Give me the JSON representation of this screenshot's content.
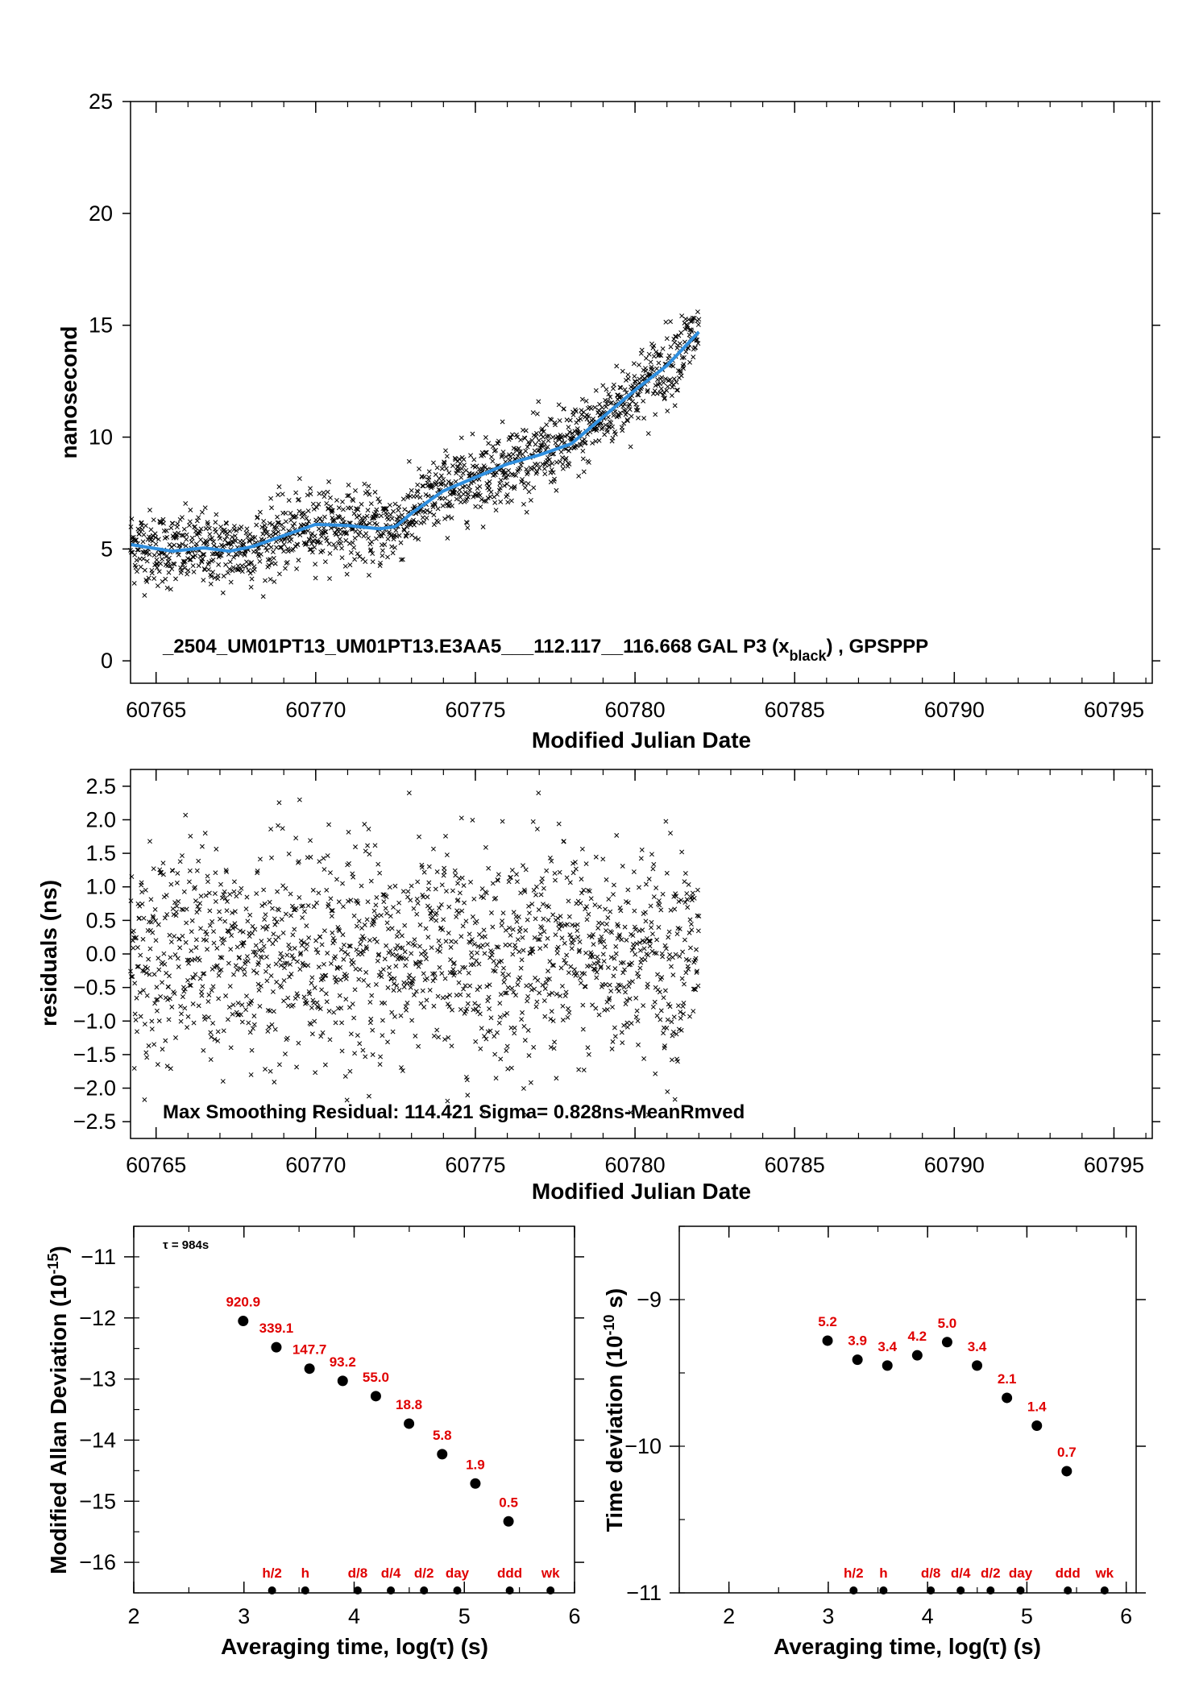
{
  "colors": {
    "scatter": "#000000",
    "smooth": "#2f8fdf",
    "labels": "#e00000"
  },
  "chart_data": [
    {
      "type": "scatter",
      "xlabel": "Modified Julian Date",
      "ylabel": "nanosecond",
      "xlim": [
        60764.2,
        60796.2
      ],
      "ylim": [
        -1,
        25
      ],
      "xticks": [
        60765,
        60770,
        60775,
        60780,
        60785,
        60790,
        60795
      ],
      "yticks": [
        0,
        5,
        10,
        15,
        20,
        25
      ],
      "annotation": {
        "prefix": "_2504_UM01PT13_UM01PT13.E3AA5___112.117__116.668    GAL P3 (x",
        "sub": "black",
        "suffix": ") ,  GPSPPP"
      },
      "scatter_marker": "x",
      "data_span": [
        60764.2,
        60782.0
      ],
      "series": [
        {
          "name": "smoothed",
          "x": [
            60764.2,
            60765.5,
            60766.5,
            60767.3,
            60768.0,
            60769.0,
            60770.0,
            60771.0,
            60772.0,
            60772.5,
            60773.0,
            60774.0,
            60775.0,
            60776.0,
            60777.0,
            60778.0,
            60779.0,
            60780.0,
            60781.0,
            60782.0
          ],
          "y": [
            5.2,
            4.9,
            5.05,
            4.9,
            5.1,
            5.6,
            6.1,
            6.05,
            5.9,
            6.0,
            6.6,
            7.6,
            8.2,
            8.8,
            9.2,
            9.7,
            10.9,
            12.1,
            13.2,
            14.7
          ]
        }
      ]
    },
    {
      "type": "scatter",
      "xlabel": "Modified Julian Date",
      "ylabel": "residuals (ns)",
      "xlim": [
        60764.2,
        60796.2
      ],
      "ylim": [
        -2.75,
        2.75
      ],
      "xticks": [
        60765,
        60770,
        60775,
        60780,
        60785,
        60790,
        60795
      ],
      "yticks": [
        -2.5,
        -2.0,
        -1.5,
        -1.0,
        -0.5,
        0.0,
        0.5,
        1.0,
        1.5,
        2.0,
        2.5
      ],
      "ytick_labels": [
        "−2.5",
        "−2.0",
        "−1.5",
        "−1.0",
        "−0.5",
        "0.0",
        "0.5",
        "1.0",
        "1.5",
        "2.0",
        "2.5"
      ],
      "annotation": "Max Smoothing Residual: 114.421  Sigma= 0.828ns-MeanRmved",
      "sigma": 0.828,
      "scatter_marker": "x",
      "data_span": [
        60764.2,
        60782.0
      ]
    },
    {
      "type": "scatter",
      "xlabel": "Averaging time, log(τ) (s)",
      "ylabel": "Modified Allan Deviation (10",
      "ylabel_sup": "-15",
      "ylabel_end": ")",
      "xlim": [
        2,
        6
      ],
      "ylim": [
        -16.5,
        -10.5
      ],
      "xticks": [
        2,
        3,
        4,
        5,
        6
      ],
      "yticks": [
        -16,
        -15,
        -14,
        -13,
        -12,
        -11
      ],
      "ytick_labels": [
        "−16",
        "−15",
        "−14",
        "−13",
        "−12",
        "−11"
      ],
      "tau_note": "τ = 984s",
      "x": [
        2.993,
        3.294,
        3.595,
        3.896,
        4.197,
        4.498,
        4.799,
        5.1,
        5.401
      ],
      "y": [
        -12.05,
        -12.48,
        -12.83,
        -13.03,
        -13.28,
        -13.73,
        -14.23,
        -14.71,
        -15.33
      ],
      "labels": [
        "920.9",
        "339.1",
        "147.7",
        "93.2",
        "55.0",
        "18.8",
        "5.8",
        "1.9",
        "0.5"
      ],
      "markers": {
        "x": [
          3.255,
          3.556,
          4.032,
          4.333,
          4.634,
          4.936,
          5.412,
          5.782
        ],
        "labels": [
          "h/2",
          "h",
          "d/8",
          "d/4",
          "d/2",
          "day",
          "ddd",
          "wk"
        ]
      }
    },
    {
      "type": "scatter",
      "xlabel": "Averaging time, log(τ) (s)",
      "ylabel": "Time deviation (10",
      "ylabel_sup": "-10",
      "ylabel_end": " s)",
      "xlim": [
        1.5,
        6.1
      ],
      "ylim": [
        -11.0,
        -8.5
      ],
      "xticks": [
        2,
        3,
        4,
        5,
        6
      ],
      "yticks": [
        -11,
        -10,
        -9
      ],
      "ytick_labels": [
        "−11",
        "−10",
        "−9"
      ],
      "x": [
        2.993,
        3.294,
        3.595,
        3.896,
        4.197,
        4.498,
        4.799,
        5.1,
        5.401
      ],
      "y": [
        -9.28,
        -9.41,
        -9.45,
        -9.38,
        -9.29,
        -9.45,
        -9.67,
        -9.86,
        -10.17
      ],
      "labels": [
        "5.2",
        "3.9",
        "3.4",
        "4.2",
        "5.0",
        "3.4",
        "2.1",
        "1.4",
        "0.7"
      ],
      "markers": {
        "x": [
          3.255,
          3.556,
          4.032,
          4.333,
          4.634,
          4.936,
          5.412,
          5.782
        ],
        "labels": [
          "h/2",
          "h",
          "d/8",
          "d/4",
          "d/2",
          "day",
          "ddd",
          "wk"
        ]
      }
    }
  ]
}
